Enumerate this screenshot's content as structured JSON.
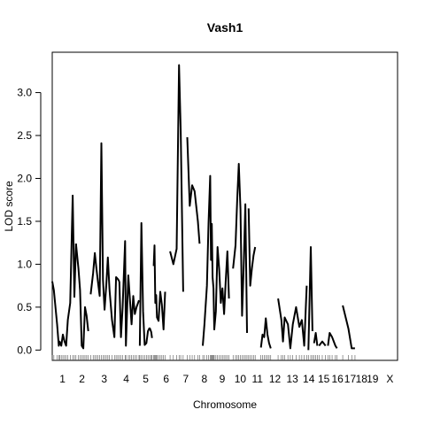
{
  "chart_data": {
    "type": "line",
    "title": "Vash1",
    "xlabel": "Chromosome",
    "ylabel": "LOD score",
    "ylim": [
      -0.12,
      3.47
    ],
    "y_ticks": [
      0.0,
      0.5,
      1.0,
      1.5,
      2.0,
      2.5,
      3.0
    ],
    "y_tick_labels": [
      "0.0",
      "0.5",
      "1.0",
      "1.5",
      "2.0",
      "2.5",
      "3.0"
    ],
    "x_ticks": [
      {
        "label": "1",
        "pos": 12.5
      },
      {
        "label": "2",
        "pos": 36.4
      },
      {
        "label": "3",
        "pos": 63.6
      },
      {
        "label": "4",
        "pos": 90.4
      },
      {
        "label": "5",
        "pos": 114.3
      },
      {
        "label": "6",
        "pos": 139.3
      },
      {
        "label": "7",
        "pos": 163.2
      },
      {
        "label": "8",
        "pos": 186.0
      },
      {
        "label": "9",
        "pos": 207.7
      },
      {
        "label": "10",
        "pos": 229.8
      },
      {
        "label": "11",
        "pos": 250.7
      },
      {
        "label": "12",
        "pos": 272.2
      },
      {
        "label": "13",
        "pos": 293.4
      },
      {
        "label": "14",
        "pos": 313.5
      },
      {
        "label": "15",
        "pos": 331.8
      },
      {
        "label": "16",
        "pos": 348.6
      },
      {
        "label": "17",
        "pos": 364.1
      },
      {
        "label": "18",
        "pos": 377.9
      },
      {
        "label": "19",
        "pos": 391.5
      },
      {
        "label": "X",
        "pos": 412.7
      }
    ],
    "xlim": [
      0,
      422
    ],
    "segments": [
      {
        "chromosome": "1",
        "x": [
          0,
          2,
          6,
          8,
          9,
          11,
          13,
          15,
          17,
          19,
          22,
          25,
          27,
          29
        ],
        "y": [
          0.8,
          0.7,
          0.3,
          0.05,
          0.1,
          0.05,
          0.18,
          0.1,
          0.05,
          0.35,
          0.55,
          1.8,
          0.62,
          1.24
        ]
      },
      {
        "chromosome": "1b",
        "x": [
          29,
          32,
          34,
          36,
          38,
          40,
          42,
          44
        ],
        "y": [
          1.24,
          0.95,
          0.7,
          0.05,
          0.02,
          0.5,
          0.4,
          0.22
        ]
      },
      {
        "chromosome": "2",
        "x": [
          47,
          50,
          52,
          54,
          56,
          58,
          60,
          62,
          64,
          66,
          68,
          70
        ],
        "y": [
          0.65,
          0.9,
          1.13,
          0.95,
          0.78,
          0.63,
          2.41,
          0.82,
          0.47,
          0.75,
          1.08,
          0.7
        ]
      },
      {
        "chromosome": "3",
        "x": [
          70,
          73,
          76,
          78,
          80,
          82
        ],
        "y": [
          0.7,
          0.35,
          0.15,
          0.85,
          0.83,
          0.8
        ]
      },
      {
        "chromosome": "3b",
        "x": [
          82,
          84,
          86,
          89,
          90,
          93,
          95,
          97,
          99,
          101,
          103,
          106
        ],
        "y": [
          0.8,
          0.15,
          0.5,
          1.27,
          0.05,
          0.87,
          0.58,
          0.3,
          0.63,
          0.42,
          0.5,
          0.58
        ]
      },
      {
        "chromosome": "4",
        "x": [
          107,
          109,
          111,
          113,
          115,
          117,
          119
        ],
        "y": [
          0.05,
          1.48,
          0.45,
          0.06,
          0.08,
          0.22,
          0.26
        ]
      },
      {
        "chromosome": "4b",
        "x": [
          119,
          121,
          122
        ],
        "y": [
          0.26,
          0.21,
          0.14
        ]
      },
      {
        "chromosome": "5",
        "x": [
          124,
          125,
          126,
          127,
          128,
          130,
          132,
          134,
          136,
          138
        ],
        "y": [
          0.98,
          1.22,
          0.55,
          0.64,
          0.38,
          0.34,
          0.68,
          0.53,
          0.24,
          0.68
        ]
      },
      {
        "chromosome": "6",
        "x": [
          144,
          148,
          152,
          155,
          157,
          160
        ],
        "y": [
          1.15,
          1.0,
          1.18,
          3.32,
          2.55,
          0.68
        ]
      },
      {
        "chromosome": "7",
        "x": [
          165,
          168,
          171,
          174,
          178,
          180
        ],
        "y": [
          2.48,
          1.68,
          1.92,
          1.85,
          1.5,
          1.24
        ]
      },
      {
        "chromosome": "8",
        "x": [
          184,
          186,
          189,
          191,
          193,
          194,
          195,
          196,
          197,
          198,
          200,
          202,
          204,
          206,
          208,
          210,
          212,
          214,
          216
        ],
        "y": [
          0.05,
          0.3,
          0.75,
          1.47,
          2.03,
          1.05,
          1.47,
          0.85,
          0.72,
          0.24,
          0.45,
          1.2,
          0.95,
          0.55,
          0.72,
          0.42,
          0.8,
          1.15,
          0.6
        ]
      },
      {
        "chromosome": "10",
        "x": [
          221,
          224,
          226,
          228,
          230,
          232,
          234,
          236,
          238
        ],
        "y": [
          0.95,
          1.22,
          1.75,
          2.17,
          1.64,
          0.4,
          1.0,
          1.7,
          0.2
        ]
      },
      {
        "chromosome": "11",
        "x": [
          240,
          242,
          244,
          246,
          248
        ],
        "y": [
          1.65,
          0.75,
          0.95,
          1.1,
          1.2
        ]
      },
      {
        "chromosome": "12",
        "x": [
          255,
          257,
          259,
          261,
          263,
          265,
          267
        ],
        "y": [
          0.03,
          0.18,
          0.15,
          0.37,
          0.18,
          0.08,
          0.02
        ]
      },
      {
        "chromosome": "13",
        "x": [
          276,
          280,
          282,
          284,
          288,
          291,
          294,
          298,
          302,
          305,
          308,
          311
        ],
        "y": [
          0.6,
          0.35,
          0.1,
          0.38,
          0.3,
          0.02,
          0.3,
          0.5,
          0.27,
          0.35,
          0.05,
          0.75
        ]
      },
      {
        "chromosome": "14",
        "x": [
          313,
          316,
          318
        ],
        "y": [
          0.0,
          1.2,
          0.22
        ]
      },
      {
        "chromosome": "15",
        "x": [
          320,
          322,
          324
        ],
        "y": [
          0.08,
          0.2,
          0.05
        ]
      },
      {
        "chromosome": "16",
        "x": [
          326,
          330,
          334
        ],
        "y": [
          0.05,
          0.1,
          0.05
        ]
      },
      {
        "chromosome": "17",
        "x": [
          337,
          339,
          342,
          346,
          348
        ],
        "y": [
          0.05,
          0.2,
          0.15,
          0.05,
          0.02
        ]
      },
      {
        "chromosome": "18",
        "x": [
          355,
          362,
          366,
          370
        ],
        "y": [
          0.52,
          0.25,
          0.02,
          0.02
        ]
      }
    ]
  }
}
